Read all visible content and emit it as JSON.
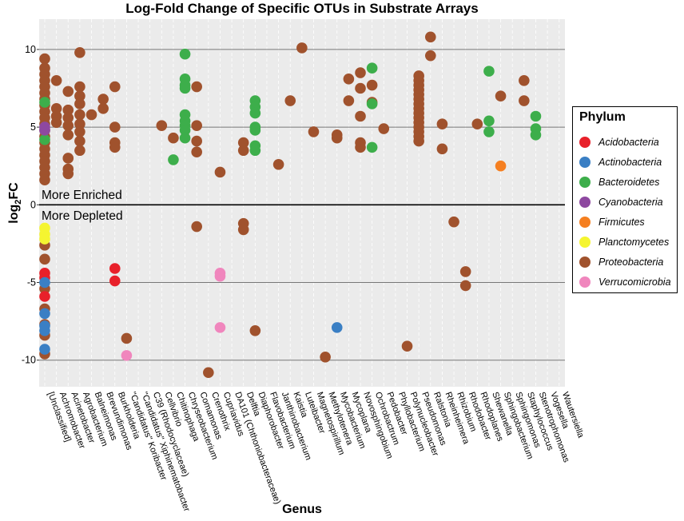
{
  "chart_data": {
    "type": "scatter",
    "title": "Log-Fold Change of Specific OTUs in Substrate Arrays",
    "xlabel": "Genus",
    "ylabel_main": "log",
    "ylabel_sub": "2",
    "ylabel_end": "FC",
    "ylim": [
      -12,
      12
    ],
    "yticks": [
      10,
      5,
      0,
      -5,
      -10
    ],
    "annotations": {
      "enriched": "More Enriched",
      "depleted": "More Depleted"
    },
    "categories": [
      "[Unclassified]",
      "Achromobacter",
      "Acinetobacter",
      "Agrobacterium",
      "Balneimonas",
      "Brevundimonas",
      "Burkholderia",
      "\"Candidatus\" Koribacter",
      "\"Candidatus\" Xiphinematobacter",
      "C39 (Rhodocyclaceae)",
      "Cellvibrio",
      "Chitinophaga",
      "Chryseobacterium",
      "Comamonas",
      "Crenothrix",
      "Cupriavidus",
      "DA101 (Chthoniobacteraceae)",
      "Delftia",
      "Diaphorobacter",
      "Flavobacterium",
      "Janthinobacterium",
      "Kaistia",
      "Luteibacter",
      "Magnetospirillum",
      "Methylotenera",
      "Mycobacterium",
      "Mycoplana",
      "Novosphingobium",
      "Ochrobactrum",
      "Pedobacter",
      "Phyllobacterium",
      "Polynucleobacter",
      "Pseudomonas",
      "Ralstonia",
      "Rheinheimera",
      "Rhizobium",
      "Rhodobacter",
      "Rhodoplanes",
      "Shewanella",
      "Sphingobacterium",
      "Sphingomonas",
      "Staphylococcus",
      "Stenotrophomonas",
      "Vogesella",
      "Wautersiella"
    ],
    "legend": {
      "title": "Phylum",
      "items": [
        {
          "name": "Acidobacteria",
          "color": "#e8202a"
        },
        {
          "name": "Actinobacteria",
          "color": "#3a7fc4"
        },
        {
          "name": "Bacteroidetes",
          "color": "#3dae4b"
        },
        {
          "name": "Cyanobacteria",
          "color": "#8e48a0"
        },
        {
          "name": "Firmicutes",
          "color": "#f57f20"
        },
        {
          "name": "Planctomycetes",
          "color": "#f5f530"
        },
        {
          "name": "Proteobacteria",
          "color": "#a0522d"
        },
        {
          "name": "Verrucomicrobia",
          "color": "#f086bd"
        }
      ]
    },
    "series": [
      {
        "name": "Proteobacteria",
        "points": [
          [
            0,
            9.4
          ],
          [
            0,
            8.8
          ],
          [
            0,
            8.4
          ],
          [
            0,
            8.0
          ],
          [
            0,
            7.6
          ],
          [
            0,
            7.2
          ],
          [
            0,
            6.8
          ],
          [
            0,
            6.4
          ],
          [
            0,
            6.0
          ],
          [
            0,
            5.6
          ],
          [
            0,
            5.2
          ],
          [
            0,
            4.8
          ],
          [
            0,
            4.4
          ],
          [
            0,
            4.0
          ],
          [
            0,
            3.6
          ],
          [
            0,
            3.2
          ],
          [
            0,
            2.8
          ],
          [
            0,
            2.4
          ],
          [
            0,
            2.0
          ],
          [
            0,
            1.6
          ],
          [
            0,
            -2.6
          ],
          [
            0,
            -3.5
          ],
          [
            0,
            -5.4
          ],
          [
            0,
            -6.7
          ],
          [
            0,
            -7.7
          ],
          [
            0,
            -8.4
          ],
          [
            0,
            -9.6
          ],
          [
            1,
            8.0
          ],
          [
            1,
            6.2
          ],
          [
            1,
            5.7
          ],
          [
            1,
            5.3
          ],
          [
            2,
            7.3
          ],
          [
            2,
            6.1
          ],
          [
            2,
            5.6
          ],
          [
            2,
            5.1
          ],
          [
            2,
            4.5
          ],
          [
            2,
            3.0
          ],
          [
            2,
            2.3
          ],
          [
            2,
            2.0
          ],
          [
            3,
            9.8
          ],
          [
            3,
            7.6
          ],
          [
            3,
            7.0
          ],
          [
            3,
            6.5
          ],
          [
            3,
            5.8
          ],
          [
            3,
            5.2
          ],
          [
            3,
            4.7
          ],
          [
            3,
            4.1
          ],
          [
            3,
            3.5
          ],
          [
            4,
            5.8
          ],
          [
            5,
            6.8
          ],
          [
            5,
            6.2
          ],
          [
            6,
            7.6
          ],
          [
            6,
            5.0
          ],
          [
            6,
            4.0
          ],
          [
            6,
            3.7
          ],
          [
            7,
            -8.6
          ],
          [
            10,
            5.1
          ],
          [
            11,
            4.3
          ],
          [
            13,
            7.6
          ],
          [
            13,
            5.1
          ],
          [
            13,
            4.1
          ],
          [
            13,
            3.4
          ],
          [
            13,
            -1.4
          ],
          [
            14,
            -10.8
          ],
          [
            15,
            2.1
          ],
          [
            17,
            4.0
          ],
          [
            17,
            3.5
          ],
          [
            17,
            -1.2
          ],
          [
            17,
            -1.6
          ],
          [
            18,
            -8.1
          ],
          [
            20,
            2.6
          ],
          [
            21,
            6.7
          ],
          [
            22,
            10.1
          ],
          [
            23,
            4.7
          ],
          [
            24,
            -9.8
          ],
          [
            25,
            4.5
          ],
          [
            25,
            4.3
          ],
          [
            26,
            8.1
          ],
          [
            26,
            6.7
          ],
          [
            27,
            8.5
          ],
          [
            27,
            7.5
          ],
          [
            27,
            5.7
          ],
          [
            27,
            4.0
          ],
          [
            27,
            3.7
          ],
          [
            28,
            7.7
          ],
          [
            28,
            6.6
          ],
          [
            29,
            4.9
          ],
          [
            31,
            -9.1
          ],
          [
            32,
            8.3
          ],
          [
            32,
            8.0
          ],
          [
            32,
            7.7
          ],
          [
            32,
            7.4
          ],
          [
            32,
            7.1
          ],
          [
            32,
            6.8
          ],
          [
            32,
            6.5
          ],
          [
            32,
            6.2
          ],
          [
            32,
            5.9
          ],
          [
            32,
            5.6
          ],
          [
            32,
            5.3
          ],
          [
            32,
            5.0
          ],
          [
            32,
            4.7
          ],
          [
            32,
            4.4
          ],
          [
            32,
            4.1
          ],
          [
            33,
            10.8
          ],
          [
            33,
            9.6
          ],
          [
            34,
            5.2
          ],
          [
            34,
            3.6
          ],
          [
            35,
            -1.1
          ],
          [
            36,
            -4.3
          ],
          [
            36,
            -5.2
          ],
          [
            37,
            5.2
          ],
          [
            39,
            7.0
          ],
          [
            41,
            8.0
          ],
          [
            41,
            6.7
          ]
        ]
      },
      {
        "name": "Bacteroidetes",
        "points": [
          [
            0,
            6.6
          ],
          [
            0,
            4.2
          ],
          [
            11,
            2.9
          ],
          [
            12,
            9.7
          ],
          [
            12,
            8.1
          ],
          [
            12,
            7.7
          ],
          [
            12,
            7.5
          ],
          [
            12,
            5.8
          ],
          [
            12,
            5.4
          ],
          [
            12,
            5.1
          ],
          [
            12,
            4.8
          ],
          [
            12,
            4.3
          ],
          [
            18,
            6.7
          ],
          [
            18,
            6.3
          ],
          [
            18,
            5.9
          ],
          [
            18,
            5.0
          ],
          [
            18,
            4.8
          ],
          [
            18,
            3.8
          ],
          [
            18,
            3.5
          ],
          [
            28,
            8.8
          ],
          [
            28,
            6.5
          ],
          [
            28,
            3.7
          ],
          [
            38,
            8.6
          ],
          [
            38,
            5.4
          ],
          [
            38,
            4.7
          ],
          [
            42,
            5.7
          ],
          [
            42,
            4.9
          ],
          [
            42,
            4.5
          ]
        ]
      },
      {
        "name": "Acidobacteria",
        "points": [
          [
            0,
            -4.4
          ],
          [
            0,
            -4.7
          ],
          [
            0,
            -5.9
          ],
          [
            6,
            -4.1
          ],
          [
            6,
            -4.9
          ]
        ]
      },
      {
        "name": "Actinobacteria",
        "points": [
          [
            0,
            -5.0
          ],
          [
            0,
            -7.0
          ],
          [
            0,
            -7.8
          ],
          [
            0,
            -8.1
          ],
          [
            0,
            -9.3
          ],
          [
            25,
            -7.9
          ]
        ]
      },
      {
        "name": "Cyanobacteria",
        "points": [
          [
            0,
            5.0
          ],
          [
            0,
            4.8
          ]
        ]
      },
      {
        "name": "Firmicutes",
        "points": [
          [
            39,
            2.5
          ]
        ]
      },
      {
        "name": "Planctomycetes",
        "points": [
          [
            0,
            -1.5
          ],
          [
            0,
            -1.9
          ],
          [
            0,
            -2.2
          ]
        ]
      },
      {
        "name": "Verrucomicrobia",
        "points": [
          [
            7,
            -9.7
          ],
          [
            15,
            -4.4
          ],
          [
            15,
            -4.6
          ],
          [
            15,
            -7.9
          ]
        ]
      }
    ]
  }
}
